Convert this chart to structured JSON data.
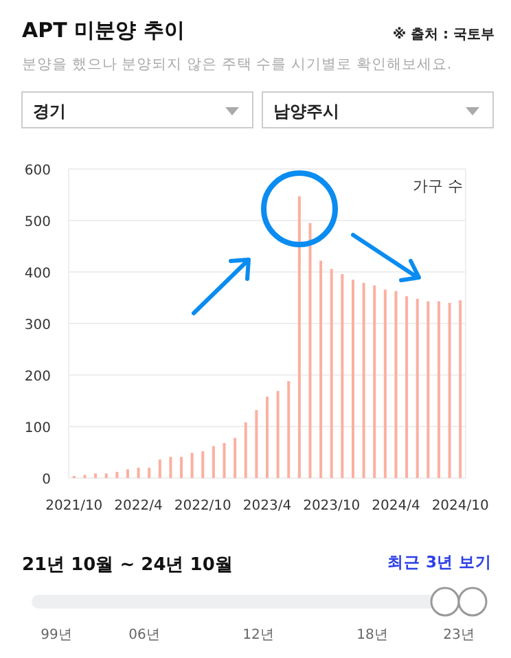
{
  "chart_data": {
    "type": "bar",
    "title": "APT 미분양 추이",
    "subtitle": "분양을 했으나 분양되지 않은 주택 수를 시기별로 확인해보세요.",
    "ylabel": "가구 수",
    "annotations": [
      "※ 출처 : 국토부",
      "경기",
      "남양주시",
      "21년 10월 ~ 24년 10월",
      "최근 3년 보기",
      "99년",
      "06년",
      "12년",
      "18년",
      "23년"
    ],
    "categories": [
      "2021/10",
      null,
      null,
      null,
      null,
      null,
      "2022/4",
      null,
      null,
      null,
      null,
      null,
      "2022/10",
      null,
      null,
      null,
      null,
      null,
      "2023/4",
      null,
      null,
      null,
      null,
      null,
      "2023/10",
      null,
      null,
      null,
      null,
      null,
      "2024/4",
      null,
      null,
      null,
      null,
      null,
      "2024/10"
    ],
    "values": [
      4,
      6,
      9,
      9,
      12,
      17,
      20,
      20,
      36,
      41,
      41,
      49,
      52,
      62,
      68,
      78,
      108,
      132,
      158,
      169,
      188,
      547,
      495,
      422,
      406,
      396,
      385,
      379,
      374,
      366,
      363,
      353,
      348,
      343,
      343,
      340,
      345
    ],
    "color": "#fbb0a0",
    "ylim": [
      0,
      600
    ],
    "yticks": [
      0,
      100,
      200,
      300,
      400,
      500,
      600
    ],
    "grid": "y"
  }
}
